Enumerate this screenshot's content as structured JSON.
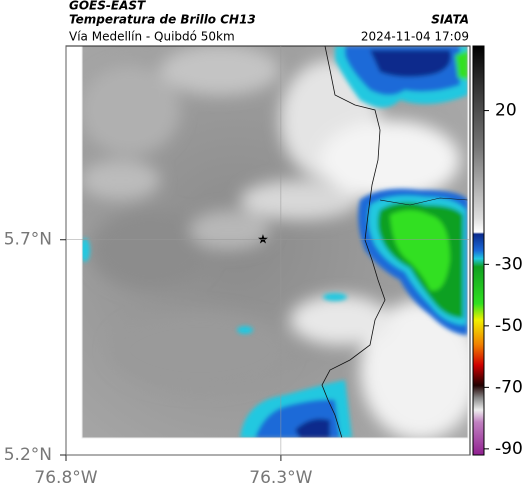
{
  "header": {
    "source": "GOES-EAST",
    "title": "Temperatura de Brillo CH13",
    "brand": "SIATA",
    "subtitle": "Vía Medellín - Quibdó 50km",
    "timestamp": "2024-11-04 17:09"
  },
  "map": {
    "xlim": [
      -76.8,
      -75.86
    ],
    "ylim": [
      5.2,
      6.15
    ],
    "xticks": [
      {
        "value": -76.8,
        "label": "76.8°W"
      },
      {
        "value": -76.3,
        "label": "76.3°W"
      }
    ],
    "yticks": [
      {
        "value": 5.2,
        "label": "5.2°N"
      },
      {
        "value": 5.7,
        "label": "5.7°N"
      }
    ]
  },
  "colorbar": {
    "lim": [
      -92,
      41
    ],
    "ticks": [
      20,
      -30,
      -50,
      -70,
      -90
    ]
  }
}
